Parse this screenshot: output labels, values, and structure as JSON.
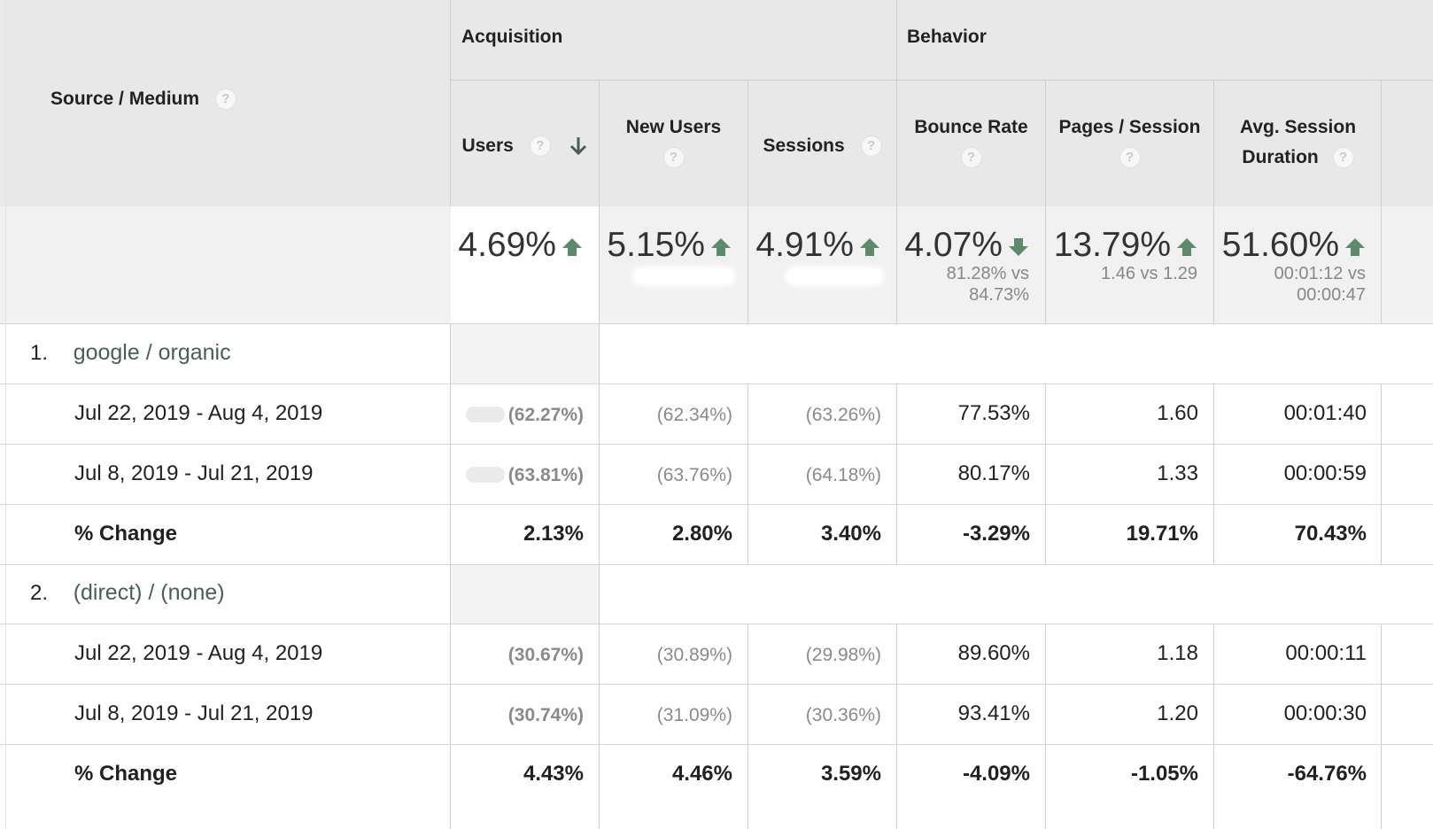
{
  "header": {
    "dimension_label": "Source / Medium",
    "groups": {
      "acquisition": "Acquisition",
      "behavior": "Behavior"
    },
    "columns": {
      "users": "Users",
      "new_users": "New Users",
      "sessions": "Sessions",
      "bounce_rate": "Bounce Rate",
      "pages_session": "Pages / Session",
      "avg_session_1": "Avg. Session",
      "avg_session_2": "Duration"
    },
    "help_glyph": "?",
    "sort_icon": "arrow-down-icon"
  },
  "totals": {
    "users": {
      "pct": "4.69%",
      "dir": "up"
    },
    "new_users": {
      "pct": "5.15%",
      "dir": "up"
    },
    "sessions": {
      "pct": "4.91%",
      "dir": "up"
    },
    "bounce_rate": {
      "pct": "4.07%",
      "dir": "down",
      "sub1": "81.28% vs",
      "sub2": "84.73%"
    },
    "pages_session": {
      "pct": "13.79%",
      "dir": "up",
      "sub1": "1.46 vs 1.29"
    },
    "avg_session": {
      "pct": "51.60%",
      "dir": "up",
      "sub1": "00:01:12 vs",
      "sub2": "00:00:47"
    }
  },
  "rows": [
    {
      "rank": "1.",
      "source": "google / organic",
      "periods": [
        {
          "label": "Jul 22, 2019 - Aug 4, 2019",
          "users": "(62.27%)",
          "new_users": "(62.34%)",
          "sessions": "(63.26%)",
          "bounce": "77.53%",
          "pps": "1.60",
          "dur": "00:01:40"
        },
        {
          "label": "Jul 8, 2019 - Jul 21, 2019",
          "users": "(63.81%)",
          "new_users": "(63.76%)",
          "sessions": "(64.18%)",
          "bounce": "80.17%",
          "pps": "1.33",
          "dur": "00:00:59"
        }
      ],
      "change": {
        "label": "% Change",
        "users": "2.13%",
        "new_users": "2.80%",
        "sessions": "3.40%",
        "bounce": "-3.29%",
        "pps": "19.71%",
        "dur": "70.43%"
      }
    },
    {
      "rank": "2.",
      "source": "(direct) / (none)",
      "periods": [
        {
          "label": "Jul 22, 2019 - Aug 4, 2019",
          "users": "(30.67%)",
          "new_users": "(30.89%)",
          "sessions": "(29.98%)",
          "bounce": "89.60%",
          "pps": "1.18",
          "dur": "00:00:11"
        },
        {
          "label": "Jul 8, 2019 - Jul 21, 2019",
          "users": "(30.74%)",
          "new_users": "(31.09%)",
          "sessions": "(30.36%)",
          "bounce": "93.41%",
          "pps": "1.20",
          "dur": "00:00:30"
        }
      ],
      "change": {
        "label": "% Change",
        "users": "4.43%",
        "new_users": "4.46%",
        "sessions": "3.59%",
        "bounce": "-4.09%",
        "pps": "-1.05%",
        "dur": "-64.76%"
      }
    }
  ],
  "colors": {
    "header_bg": "#e8e8e8",
    "arrow_green": "#5d8a6c",
    "source_link": "#4a5e55"
  }
}
